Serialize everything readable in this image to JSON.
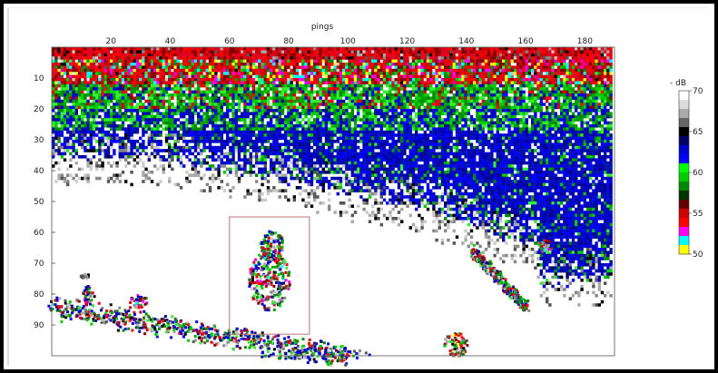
{
  "chart_data": {
    "type": "heatmap",
    "xlabel": "pings",
    "x_ticks": [
      20,
      40,
      60,
      80,
      100,
      120,
      140,
      160,
      180
    ],
    "xlim": [
      0,
      190
    ],
    "y_ticks": [
      10,
      20,
      30,
      40,
      50,
      60,
      70,
      80,
      90
    ],
    "ylim": [
      0,
      100
    ],
    "y_inverted": true,
    "colorbar": {
      "title": "- dB",
      "ticks": [
        70,
        65,
        60,
        55,
        50
      ],
      "range": [
        50,
        70
      ]
    },
    "box_annotation": {
      "x": [
        60,
        87
      ],
      "y": [
        55,
        93
      ],
      "color": "#c0707a"
    }
  }
}
